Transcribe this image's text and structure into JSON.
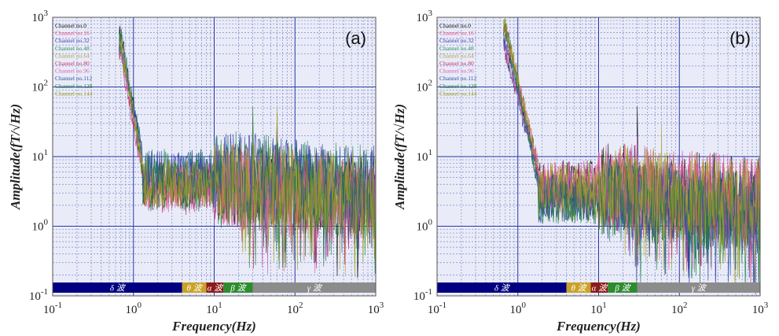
{
  "chart_data": [
    {
      "panel_label": "(a)",
      "type": "line",
      "x_scale": "log",
      "y_scale": "log",
      "xlim": [
        0.1,
        1000
      ],
      "ylim": [
        0.1,
        1000
      ],
      "xlabel": "Frequency(Hz)",
      "ylabel": "Amplitude(fT/√Hz)",
      "x_tick_labels": [
        "10-1",
        "100",
        "101",
        "102",
        "103"
      ],
      "y_tick_labels": [
        "10-1",
        "100",
        "101",
        "102",
        "103"
      ],
      "legend": [
        "Channel no.0",
        "Channel no.16",
        "Channel no.32",
        "Channel no.48",
        "Channel no.64",
        "Channel no.80",
        "Channel no.96",
        "Channel no.112",
        "Channel no.128",
        "Channel no.144"
      ],
      "bands": [
        {
          "label": "δ 波",
          "from": 0.1,
          "to": 4,
          "color": "#000080"
        },
        {
          "label": "θ 波",
          "from": 4,
          "to": 8,
          "color": "#c9a227"
        },
        {
          "label": "α 波",
          "from": 8,
          "to": 13,
          "color": "#8b1a1a"
        },
        {
          "label": "β 波",
          "from": 13,
          "to": 30,
          "color": "#2e8b2e"
        },
        {
          "label": "γ 波",
          "from": 30,
          "to": 1000,
          "color": "#8c8c8c"
        }
      ],
      "series_profile": {
        "peak_hz": 0.7,
        "peak_amp": 500,
        "knee_hz": 1.3,
        "floor_amp": 4,
        "spike_hz": [
          30,
          60
        ]
      }
    },
    {
      "panel_label": "(b)",
      "type": "line",
      "x_scale": "log",
      "y_scale": "log",
      "xlim": [
        0.1,
        1000
      ],
      "ylim": [
        0.1,
        1000
      ],
      "xlabel": "Frequency(Hz)",
      "ylabel": "Amplitude(fT/√Hz)",
      "x_tick_labels": [
        "10-1",
        "100",
        "101",
        "102",
        "103"
      ],
      "y_tick_labels": [
        "10-1",
        "100",
        "101",
        "102",
        "103"
      ],
      "legend": [
        "Channel no.0",
        "Channel no.16",
        "Channel no.32",
        "Channel no.48",
        "Channel no.64",
        "Channel no.80",
        "Channel no.96",
        "Channel no.112",
        "Channel no.128",
        "Channel no.144"
      ],
      "bands": [
        {
          "label": "δ 波",
          "from": 0.1,
          "to": 4,
          "color": "#000080"
        },
        {
          "label": "θ 波",
          "from": 4,
          "to": 8,
          "color": "#c9a227"
        },
        {
          "label": "α 波",
          "from": 8,
          "to": 13,
          "color": "#8b1a1a"
        },
        {
          "label": "β 波",
          "from": 13,
          "to": 30,
          "color": "#2e8b2e"
        },
        {
          "label": "γ 波",
          "from": 30,
          "to": 1000,
          "color": "#8c8c8c"
        }
      ],
      "series_profile": {
        "peak_hz": 0.7,
        "peak_amp": 700,
        "knee_hz": 1.8,
        "floor_amp": 3,
        "spike_hz": [
          30,
          60
        ]
      }
    }
  ],
  "series_colors": [
    "#111111",
    "#e8507a",
    "#3a3ab0",
    "#2e8b57",
    "#b5a642",
    "#c0306a",
    "#d45fb0",
    "#3050a0",
    "#1f7a3a",
    "#a0a020"
  ]
}
